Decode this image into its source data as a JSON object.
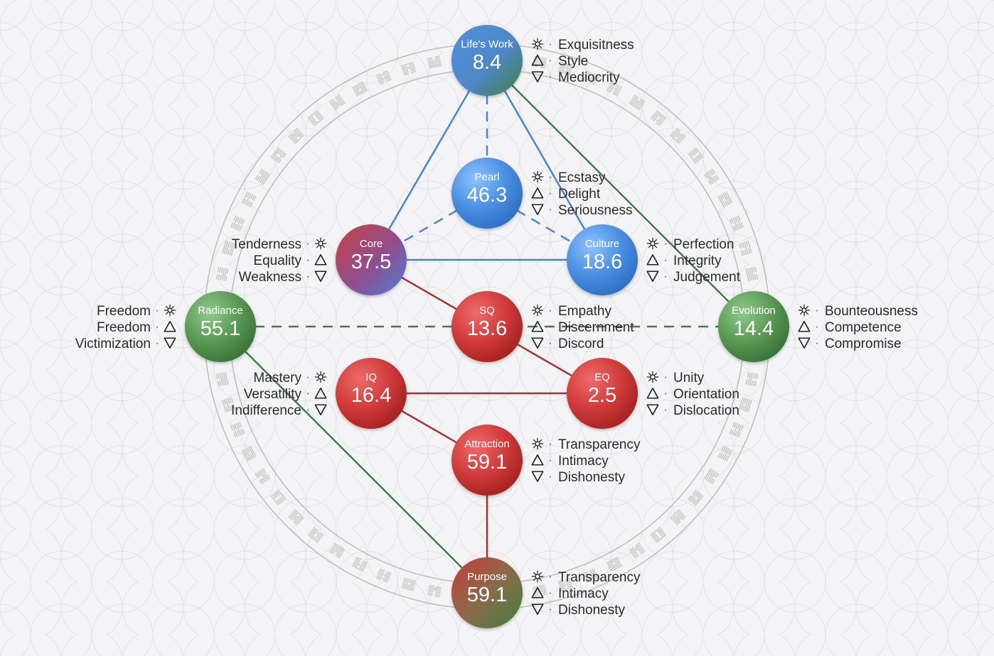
{
  "colors": {
    "blue": "#4a90e2",
    "red": "#c33030",
    "green": "#3f7f3f",
    "core_line_blue": "#4a84d8",
    "core_line_red": "#a63232",
    "ring": "#bdbdbd"
  },
  "icons": {
    "gift": "gift-star-icon",
    "shadow": "down-triangle-icon",
    "siddhi": "up-triangle-icon"
  },
  "nodes": [
    {
      "id": "lifes-work",
      "title": "Life's Work",
      "value": "8.4",
      "style": "blue-green",
      "labels": [
        "Exquisitness",
        "Style",
        "Mediocrity"
      ],
      "side": "right"
    },
    {
      "id": "pearl",
      "title": "Pearl",
      "value": "46.3",
      "style": "blue",
      "labels": [
        "Ecstasy",
        "Delight",
        "Seriousness"
      ],
      "side": "right"
    },
    {
      "id": "core",
      "title": "Core",
      "value": "37.5",
      "style": "core",
      "labels": [
        "Tenderness",
        "Equality",
        "Weakness"
      ],
      "side": "left"
    },
    {
      "id": "culture",
      "title": "Culture",
      "value": "18.6",
      "style": "blue",
      "labels": [
        "Perfection",
        "Integrity",
        "Judgement"
      ],
      "side": "right"
    },
    {
      "id": "radiance",
      "title": "Radiance",
      "value": "55.1",
      "style": "green",
      "labels": [
        "Freedom",
        "Freedom",
        "Victimization"
      ],
      "side": "left"
    },
    {
      "id": "sq",
      "title": "SQ",
      "value": "13.6",
      "style": "red",
      "labels": [
        "Empathy",
        "Discernment",
        "Discord"
      ],
      "side": "right"
    },
    {
      "id": "evolution",
      "title": "Evolution",
      "value": "14.4",
      "style": "green",
      "labels": [
        "Bounteousness",
        "Competence",
        "Compromise"
      ],
      "side": "right"
    },
    {
      "id": "iq",
      "title": "IQ",
      "value": "16.4",
      "style": "red",
      "labels": [
        "Mastery",
        "Versatility",
        "Indifference"
      ],
      "side": "left"
    },
    {
      "id": "eq",
      "title": "EQ",
      "value": "2.5",
      "style": "red",
      "labels": [
        "Unity",
        "Orientation",
        "Dislocation"
      ],
      "side": "right"
    },
    {
      "id": "attraction",
      "title": "Attraction",
      "value": "59.1",
      "style": "red",
      "labels": [
        "Transparency",
        "Intimacy",
        "Dishonesty"
      ],
      "side": "right"
    },
    {
      "id": "purpose",
      "title": "Purpose",
      "value": "59.1",
      "style": "red-green",
      "labels": [
        "Transparency",
        "Intimacy",
        "Dishonesty"
      ],
      "side": "right"
    }
  ],
  "edges": [
    {
      "from": "lifes-work",
      "to": "core",
      "color": "blue",
      "dashed": false
    },
    {
      "from": "lifes-work",
      "to": "culture",
      "color": "blue",
      "dashed": false
    },
    {
      "from": "core",
      "to": "culture",
      "color": "blue",
      "dashed": false
    },
    {
      "from": "lifes-work",
      "to": "pearl",
      "color": "blue",
      "dashed": true
    },
    {
      "from": "pearl",
      "to": "core",
      "color": "blue",
      "dashed": true
    },
    {
      "from": "pearl",
      "to": "culture",
      "color": "blue",
      "dashed": true
    },
    {
      "from": "lifes-work",
      "to": "evolution",
      "color": "green",
      "dashed": false
    },
    {
      "from": "radiance",
      "to": "purpose",
      "color": "green",
      "dashed": false
    },
    {
      "from": "radiance",
      "to": "evolution",
      "color": "green",
      "dashed": true
    },
    {
      "from": "core",
      "to": "eq",
      "color": "red",
      "dashed": false
    },
    {
      "from": "iq",
      "to": "eq",
      "color": "red",
      "dashed": false
    },
    {
      "from": "iq",
      "to": "attraction",
      "color": "red",
      "dashed": false
    },
    {
      "from": "attraction",
      "to": "purpose",
      "color": "red",
      "dashed": false
    }
  ]
}
